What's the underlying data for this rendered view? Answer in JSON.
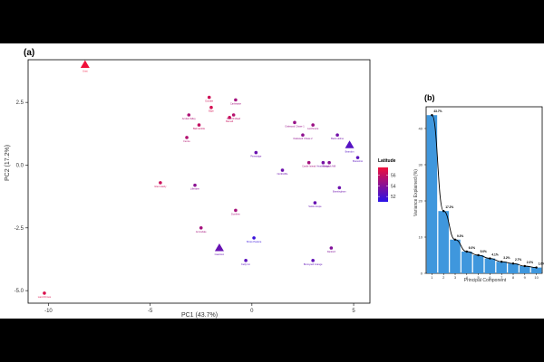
{
  "chart_data": [
    {
      "type": "scatter",
      "panel_label": "(a)",
      "xlabel": "PC1 (43.7%)",
      "ylabel": "PC2 (17.2%)",
      "xlim": [
        -11,
        5.8
      ],
      "ylim": [
        -5.5,
        4.2
      ],
      "xticks": [
        -10,
        -5,
        0,
        5
      ],
      "yticks": [
        -5.0,
        -2.5,
        0.0,
        2.5
      ],
      "xtick_labels": [
        "-10",
        "-5",
        "0",
        "5"
      ],
      "ytick_labels": [
        "-5.0",
        "-2.5",
        "0.0",
        "2.5"
      ],
      "legend": {
        "title": "Latitude",
        "ticks": [
          56,
          54,
          52
        ],
        "low_color": "#2a12e8",
        "high_color": "#f0103a",
        "range": [
          51,
          57.5
        ],
        "placement": "right"
      },
      "points": [
        {
          "label": "Unst",
          "x": -8.2,
          "y": 4.0,
          "lat": 57.5,
          "shape": "triangle"
        },
        {
          "label": "Land Ormes",
          "x": -10.2,
          "y": -5.1,
          "lat": 56.8,
          "shape": "circle"
        },
        {
          "label": "Glen Hardy",
          "x": -4.5,
          "y": -0.7,
          "lat": 56.3,
          "shape": "circle"
        },
        {
          "label": "Lillesden",
          "x": -2.8,
          "y": -0.8,
          "lat": 54.2,
          "shape": "circle"
        },
        {
          "label": "Armindale",
          "x": -2.5,
          "y": -2.5,
          "lat": 55.0,
          "shape": "circle"
        },
        {
          "label": "Caerston",
          "x": -1.6,
          "y": -3.3,
          "lat": 53.0,
          "shape": "triangle"
        },
        {
          "label": "Dunfries",
          "x": -0.8,
          "y": -1.8,
          "lat": 55.1,
          "shape": "circle"
        },
        {
          "label": "Kelly Inn",
          "x": -0.3,
          "y": -3.8,
          "lat": 52.6,
          "shape": "circle"
        },
        {
          "label": "Shore Pasture",
          "x": 0.1,
          "y": -2.9,
          "lat": 51.5,
          "shape": "circle"
        },
        {
          "label": "Arndal Valley",
          "x": -3.1,
          "y": 2.0,
          "lat": 55.3,
          "shape": "circle"
        },
        {
          "label": "Balmaroble",
          "x": -2.6,
          "y": 1.6,
          "lat": 56.0,
          "shape": "circle"
        },
        {
          "label": "Fernie",
          "x": -3.2,
          "y": 1.1,
          "lat": 55.5,
          "shape": "circle"
        },
        {
          "label": "Dunalie",
          "x": -2.1,
          "y": 2.7,
          "lat": 56.4,
          "shape": "circle"
        },
        {
          "label": "Elgin",
          "x": -2.0,
          "y": 2.3,
          "lat": 56.6,
          "shape": "circle"
        },
        {
          "label": "Carlswaite",
          "x": -0.8,
          "y": 2.6,
          "lat": 55.0,
          "shape": "circle"
        },
        {
          "label": "Birkhill Mead",
          "x": -0.9,
          "y": 2.0,
          "lat": 55.6,
          "shape": "circle"
        },
        {
          "label": "Barnell",
          "x": -1.1,
          "y": 1.9,
          "lat": 56.2,
          "shape": "circle"
        },
        {
          "label": "Pinewidge",
          "x": 0.2,
          "y": 0.5,
          "lat": 53.1,
          "shape": "circle"
        },
        {
          "label": "Northcliffe",
          "x": 1.5,
          "y": -0.2,
          "lat": 53.2,
          "shape": "circle"
        },
        {
          "label": "Oakwood Chase 1",
          "x": 2.1,
          "y": 1.7,
          "lat": 54.6,
          "shape": "circle"
        },
        {
          "label": "Oakwood Chase 2",
          "x": 2.5,
          "y": 1.2,
          "lat": 54.3,
          "shape": "circle"
        },
        {
          "label": "Larchmere",
          "x": 3.0,
          "y": 1.6,
          "lat": 54.7,
          "shape": "circle"
        },
        {
          "label": "Castle Istead",
          "x": 2.8,
          "y": 0.1,
          "lat": 55.0,
          "shape": "circle"
        },
        {
          "label": "Heathbridge",
          "x": 3.5,
          "y": 0.1,
          "lat": 53.5,
          "shape": "circle"
        },
        {
          "label": "Keswick Mill",
          "x": 3.8,
          "y": 0.1,
          "lat": 54.1,
          "shape": "circle"
        },
        {
          "label": "Beck Holme",
          "x": 4.2,
          "y": 1.2,
          "lat": 53.4,
          "shape": "circle"
        },
        {
          "label": "Brandon",
          "x": 4.8,
          "y": 0.8,
          "lat": 52.4,
          "shape": "triangle"
        },
        {
          "label": "Bramshot",
          "x": 5.2,
          "y": 0.3,
          "lat": 52.6,
          "shape": "circle"
        },
        {
          "label": "Brantingham",
          "x": 4.3,
          "y": -0.9,
          "lat": 53.2,
          "shape": "circle"
        },
        {
          "label": "Sutton Hope",
          "x": 3.1,
          "y": -1.5,
          "lat": 53.0,
          "shape": "circle"
        },
        {
          "label": "Danford",
          "x": 3.9,
          "y": -3.3,
          "lat": 53.9,
          "shape": "circle"
        },
        {
          "label": "Bromyard Grange",
          "x": 3.0,
          "y": -3.8,
          "lat": 52.8,
          "shape": "circle"
        }
      ]
    },
    {
      "type": "bar",
      "panel_label": "(b)",
      "xlabel": "Principal Component",
      "ylabel": "Variance Explained (%)",
      "categories": [
        "1",
        "2",
        "3",
        "4",
        "5",
        "6",
        "7",
        "8",
        "9",
        "10"
      ],
      "values": [
        43.7,
        17.2,
        9.3,
        6.0,
        5.0,
        4.1,
        3.2,
        2.7,
        2.0,
        1.6
      ],
      "data_labels": [
        "43.7%",
        "17.2%",
        "9.3%",
        "6.0%",
        "5.0%",
        "4.1%",
        "3.2%",
        "2.7%",
        "2.0%",
        "1.6%"
      ],
      "ylim": [
        0,
        46
      ],
      "yticks": [
        0,
        10,
        20,
        30,
        40
      ],
      "ytick_labels": [
        "0",
        "10",
        "20",
        "30",
        "40"
      ],
      "bar_color": "#3f97dd",
      "line_color": "#000000"
    }
  ]
}
